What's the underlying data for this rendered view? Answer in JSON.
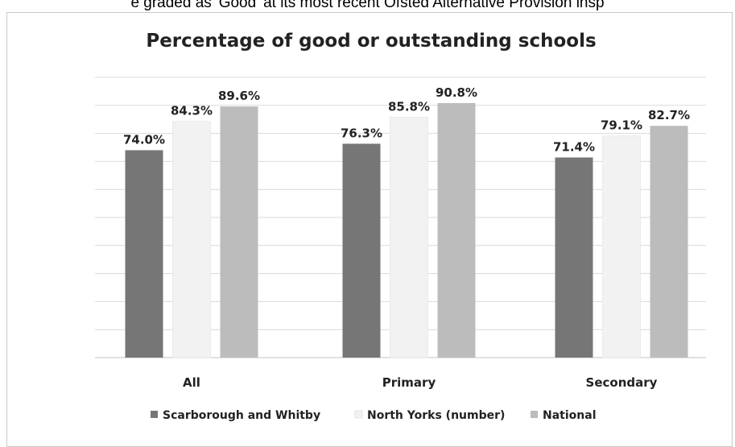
{
  "caption_fragment": "e graded as 'Good' at its most recent Ofsted Alternative Provision insp",
  "chart_data": {
    "type": "bar",
    "title": "Percentage of good or outstanding schools",
    "xlabel": "",
    "ylabel": "",
    "categories": [
      "All",
      "Primary",
      "Secondary"
    ],
    "series": [
      {
        "name": "Scarborough and Whitby",
        "values": [
          74.0,
          76.3,
          71.4
        ],
        "labels": [
          "74.0%",
          "76.3%",
          "71.4%"
        ],
        "color": "#767676"
      },
      {
        "name": "North Yorks (number)",
        "values": [
          84.3,
          85.8,
          79.1
        ],
        "labels": [
          "84.3%",
          "85.8%",
          "79.1%"
        ],
        "color": "#f2f2f2"
      },
      {
        "name": "National",
        "values": [
          89.6,
          90.8,
          82.7
        ],
        "labels": [
          "89.6%",
          "90.8%",
          "82.7%"
        ],
        "color": "#bcbcbc"
      }
    ],
    "ylim": [
      0,
      100
    ],
    "grid": true,
    "gridline_count": 10,
    "gridline_color": "#d9d9d9",
    "legend_position": "bottom"
  }
}
